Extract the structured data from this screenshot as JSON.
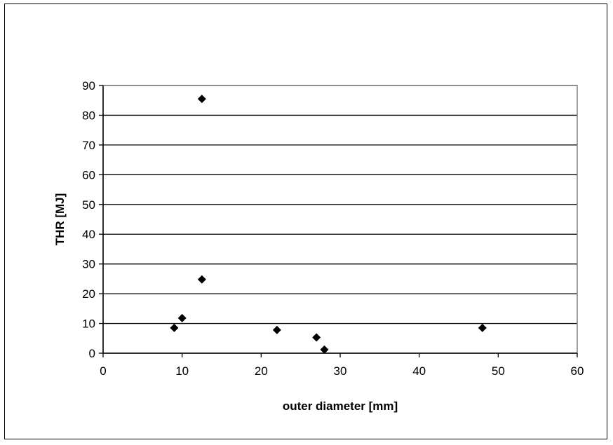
{
  "chart_data": {
    "type": "scatter",
    "xlabel": "outer diameter [mm]",
    "ylabel": "THR [MJ]",
    "xlim": [
      0,
      60
    ],
    "ylim": [
      0,
      90
    ],
    "xticks": [
      0,
      10,
      20,
      30,
      40,
      50,
      60
    ],
    "yticks": [
      0,
      10,
      20,
      30,
      40,
      50,
      60,
      70,
      80,
      90
    ],
    "grid": "horizontal",
    "legend": "none",
    "marker": "diamond",
    "marker_color": "#000000",
    "series": [
      {
        "x": [
          9,
          10,
          12.5,
          12.5,
          22,
          27,
          28,
          48
        ],
        "y": [
          8.5,
          11.8,
          85.5,
          24.8,
          7.8,
          5.3,
          1.2,
          8.5
        ]
      }
    ]
  }
}
